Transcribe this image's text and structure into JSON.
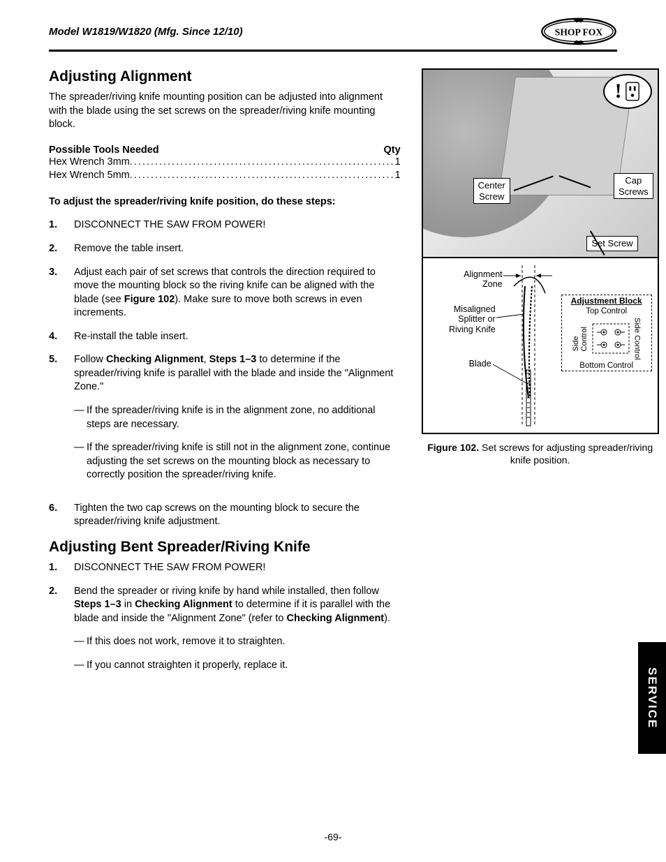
{
  "header": {
    "model": "Model W1819/W1820 (Mfg. Since 12/10)",
    "brand": "SHOP FOX"
  },
  "section1": {
    "title": "Adjusting Alignment",
    "intro": "The spreader/riving knife mounting position can be adjusted into alignment with the blade using the set screws on the spreader/riving knife mounting block.",
    "tools_heading": "Possible Tools Needed",
    "qty_heading": "Qty",
    "tools": [
      {
        "name": "Hex Wrench 3mm",
        "qty": "1"
      },
      {
        "name": "Hex Wrench 5mm",
        "qty": "1"
      }
    ],
    "instr_heading": "To adjust the spreader/riving knife position, do these steps:",
    "steps": [
      {
        "n": "1.",
        "text": "DISCONNECT THE SAW FROM POWER!"
      },
      {
        "n": "2.",
        "text": "Remove the table insert."
      },
      {
        "n": "3.",
        "pre": "Adjust each pair of set screws that controls the direction required to move the mounting block so the riving knife can be aligned with the blade (see ",
        "bold": "Figure 102",
        "post": "). Make sure to move both screws in even increments."
      },
      {
        "n": "4.",
        "text": "Re-install the table insert."
      },
      {
        "n": "5.",
        "pre": "Follow ",
        "bold": "Checking Alignment",
        "mid": ", ",
        "bold2": "Steps 1–3",
        "post": " to determine if the spreader/riving knife is parallel with the blade and inside the \"Alignment Zone.\"",
        "subs": [
          "If the spreader/riving knife is in the alignment zone, no additional steps are necessary.",
          "If the spreader/riving knife is still not in the alignment zone, continue adjusting the set screws on the mounting block as necessary to correctly position the spreader/riving knife."
        ]
      },
      {
        "n": "6.",
        "text": "Tighten the two cap screws on the mounting block to secure the spreader/riving knife adjustment."
      }
    ]
  },
  "section2": {
    "title": "Adjusting Bent Spreader/Riving Knife",
    "steps": [
      {
        "n": "1.",
        "text": "DISCONNECT THE SAW FROM POWER!"
      },
      {
        "n": "2.",
        "pre": "Bend the spreader or riving knife by hand while installed, then follow ",
        "bold": "Steps 1–3",
        "mid": " in ",
        "bold2": "Checking Alignment",
        "post2": " to determine if it is parallel with the blade and inside the \"Alignment Zone\" (refer to ",
        "bold3": "Checking Alignment",
        "post3": ").",
        "subs": [
          "If this does not work, remove it to straighten.",
          "If you cannot straighten it properly, replace it."
        ]
      }
    ]
  },
  "figure": {
    "labels": {
      "center_screw": "Center\nScrew",
      "cap_screws": "Cap\nScrews",
      "set_screw": "Set Screw",
      "alignment_zone": "Alignment\nZone",
      "misaligned": "Misaligned\nSplitter or\nRiving Knife",
      "blade": "Blade",
      "adj_block": "Adjustment Block",
      "top_control": "Top Control",
      "bottom_control": "Bottom Control",
      "side_control_l": "Side\nControl",
      "side_control_r": "Side\nControl"
    },
    "caption_bold": "Figure 102.",
    "caption_rest": " Set screws for adjusting spreader/riving knife position."
  },
  "tab": "SERVICE",
  "page": "-69-"
}
